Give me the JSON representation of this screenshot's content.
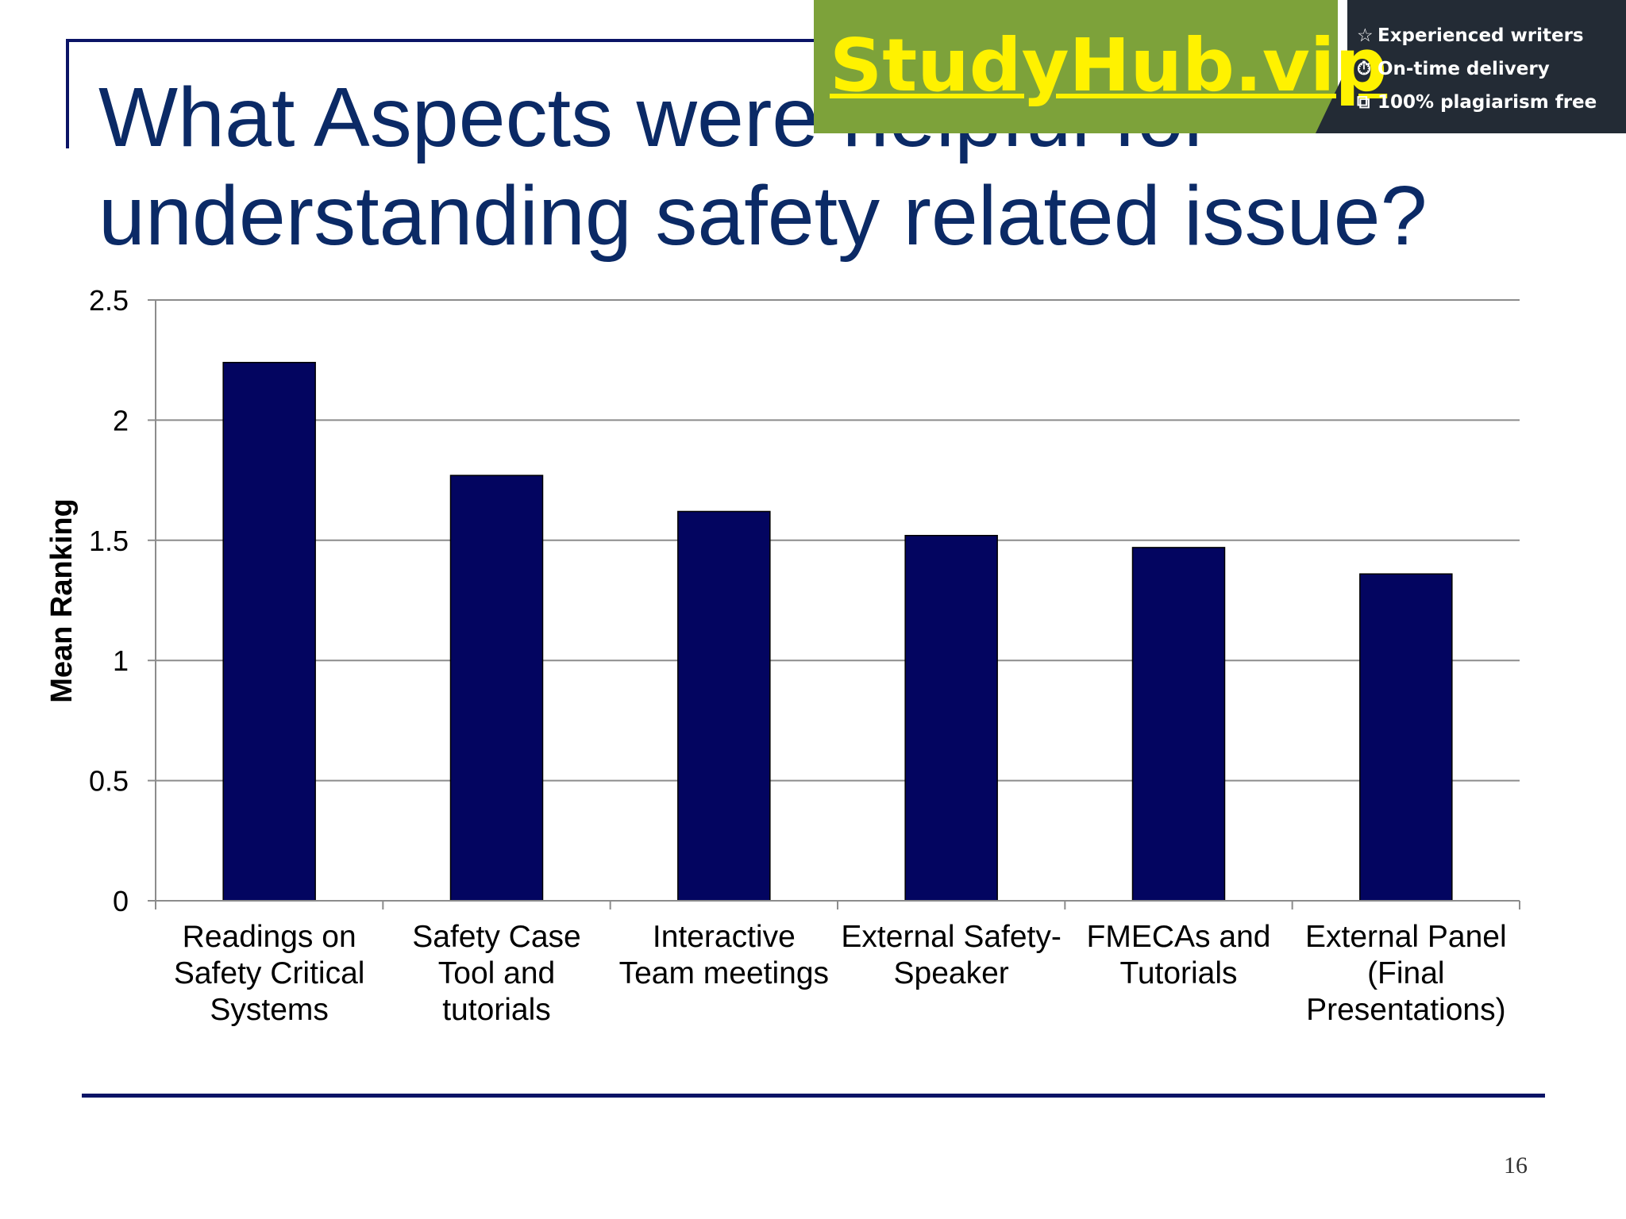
{
  "slide": {
    "title": "What Aspects were helpful for\nunderstanding safety related issue?",
    "page_number": "16"
  },
  "watermark": {
    "brand": "StudyHub.vip",
    "items": [
      {
        "icon": "star-icon",
        "glyph": "☆",
        "text": "Experienced writers"
      },
      {
        "icon": "clock-icon",
        "glyph": "⏱",
        "text": "On-time delivery"
      },
      {
        "icon": "copy-icon",
        "glyph": "⧉",
        "text": "100% plagiarism free"
      }
    ],
    "colors": {
      "green": "#7da23a",
      "dark": "#232b35",
      "brand": "#fff200"
    }
  },
  "chart_data": {
    "type": "bar",
    "title": "",
    "xlabel": "",
    "ylabel": "Mean Ranking",
    "ylim": [
      0,
      2.5
    ],
    "yticks": [
      0,
      0.5,
      1,
      1.5,
      2,
      2.5
    ],
    "ytick_labels": [
      "0",
      "0.5",
      "1",
      "1.5",
      "2",
      "2.5"
    ],
    "grid": true,
    "legend": "none",
    "bar_color": "#030560",
    "categories": [
      "Readings on\nSafety Critical\nSystems",
      "Safety Case\nTool and\ntutorials",
      "Interactive\nTeam meetings",
      "External Safety-\nSpeaker",
      "FMECAs and\nTutorials",
      "External Panel\n(Final\nPresentations)"
    ],
    "values": [
      2.24,
      1.77,
      1.62,
      1.52,
      1.47,
      1.36
    ]
  }
}
